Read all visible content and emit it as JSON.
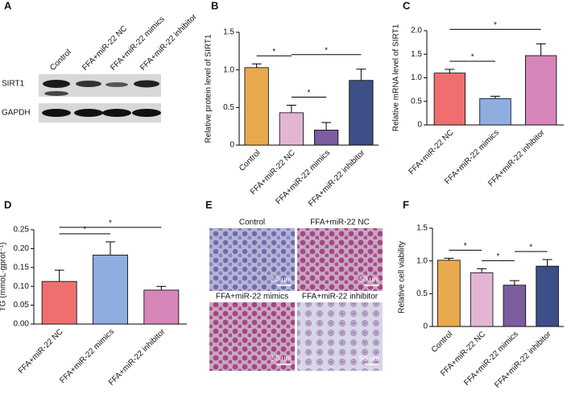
{
  "panel_labels": [
    "A",
    "B",
    "C",
    "D",
    "E",
    "F"
  ],
  "blot": {
    "lanes": [
      "Control",
      "FFA+miR-22 NC",
      "FFA+miR-22 mimics",
      "FFA+miR-22 inhibitor"
    ],
    "rows": [
      "SIRT1",
      "GAPDH"
    ]
  },
  "micrographs": {
    "titles": [
      "Control",
      "FFA+miR-22 NC",
      "FFA+miR-22 mimics",
      "FFA+miR-22 inhibitor"
    ],
    "scale_bar": "50 um"
  },
  "chart_data": [
    {
      "type": "bar",
      "ylabel": "Relative protein level of SIRT1",
      "categories": [
        "Control",
        "FFA+miR-22 NC",
        "FFA+miR-22 mimics",
        "FFA+miR-22 inhibitor"
      ],
      "values": [
        1.03,
        0.43,
        0.2,
        0.86
      ],
      "errors": [
        0.05,
        0.1,
        0.1,
        0.15
      ],
      "colors": [
        "#e8a94e",
        "#e4b5d3",
        "#7b5da0",
        "#3d4f86"
      ],
      "ylim": [
        0,
        1.5
      ],
      "yticks": [
        0,
        0.5,
        {
          "value": 1,
          "label": "1.0"
        },
        1.5
      ],
      "comparisons": [
        {
          "between": [
            "Control",
            "FFA+miR-22 NC"
          ],
          "label": "*"
        },
        {
          "between": [
            "FFA+miR-22 NC",
            "FFA+miR-22 mimics"
          ],
          "label": "*"
        },
        {
          "between": [
            "FFA+miR-22 NC",
            "FFA+miR-22 inhibitor"
          ],
          "label": "*"
        }
      ]
    },
    {
      "type": "bar",
      "ylabel": "Relative mRNA level of SIRT1",
      "categories": [
        "FFA+miR-22 NC",
        "FFA+miR-22 mimics",
        "FFA+miR-22 inhibitor"
      ],
      "values": [
        1.1,
        0.56,
        1.47
      ],
      "errors": [
        0.08,
        0.05,
        0.25
      ],
      "colors": [
        "#ef6f6f",
        "#8eaee0",
        "#d686b8"
      ],
      "ylim": [
        0,
        2
      ],
      "yticks": [
        0,
        0.5,
        {
          "value": 1,
          "label": "1.0"
        },
        1.5,
        {
          "value": 2,
          "label": "2.0"
        }
      ],
      "comparisons": [
        {
          "between": [
            "FFA+miR-22 NC",
            "FFA+miR-22 mimics"
          ],
          "label": "*"
        },
        {
          "between": [
            "FFA+miR-22 NC",
            "FFA+miR-22 inhibitor"
          ],
          "label": "*"
        }
      ]
    },
    {
      "type": "bar",
      "ylabel": "TG (mmoL·gprot⁻¹)",
      "categories": [
        "FFA+miR-22 NC",
        "FFA+miR-22 mimics",
        "FFA+miR-22 inhibitor"
      ],
      "values": [
        0.113,
        0.183,
        0.09
      ],
      "errors": [
        0.03,
        0.035,
        0.01
      ],
      "colors": [
        "#ef6f6f",
        "#8eaee0",
        "#d686b8"
      ],
      "ylim": [
        0,
        0.25
      ],
      "yticks": [
        {
          "value": 0,
          "label": "0.00"
        },
        {
          "value": 0.05,
          "label": "0.05"
        },
        {
          "value": 0.1,
          "label": "0.10"
        },
        {
          "value": 0.15,
          "label": "0.15"
        },
        {
          "value": 0.2,
          "label": "0.20"
        },
        {
          "value": 0.25,
          "label": "0.25"
        }
      ],
      "comparisons": [
        {
          "between": [
            "FFA+miR-22 NC",
            "FFA+miR-22 mimics"
          ],
          "label": "*"
        },
        {
          "between": [
            "FFA+miR-22 NC",
            "FFA+miR-22 inhibitor"
          ],
          "label": "*"
        }
      ]
    },
    {
      "type": "bar",
      "ylabel": "Relative cell viability",
      "categories": [
        "Control",
        "FFA+miR-22 NC",
        "FFA+miR-22 mimics",
        "FFA+miR-22 inhibitor"
      ],
      "values": [
        1.01,
        0.82,
        0.63,
        0.92
      ],
      "errors": [
        0.03,
        0.06,
        0.07,
        0.1
      ],
      "colors": [
        "#e8a94e",
        "#e4b5d3",
        "#7b5da0",
        "#3d4f86"
      ],
      "ylim": [
        0,
        1.5
      ],
      "yticks": [
        0,
        0.5,
        {
          "value": 1,
          "label": "1.0"
        },
        1.5
      ],
      "comparisons": [
        {
          "between": [
            "Control",
            "FFA+miR-22 NC"
          ],
          "label": "*"
        },
        {
          "between": [
            "FFA+miR-22 NC",
            "FFA+miR-22 mimics"
          ],
          "label": "*"
        },
        {
          "between": [
            "FFA+miR-22 mimics",
            "FFA+miR-22 inhibitor"
          ],
          "label": "*"
        }
      ]
    }
  ]
}
